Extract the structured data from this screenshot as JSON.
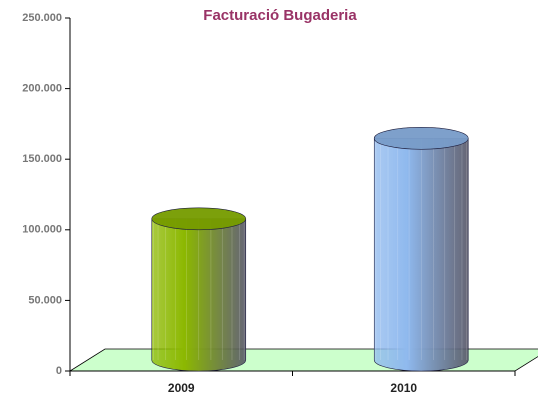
{
  "chart_data": {
    "type": "bar3d",
    "title": "Facturació Bugaderia",
    "categories": [
      "2009",
      "2010"
    ],
    "values": [
      100000,
      157000
    ],
    "colors": [
      "#8cb800",
      "#8fb9ee"
    ],
    "ylim": [
      0,
      250000
    ],
    "yticks": [
      0,
      {
        "value": 50000,
        "label": "50.000"
      },
      {
        "value": 100000,
        "label": "100.000"
      },
      {
        "value": 150000,
        "label": "150.000"
      },
      {
        "value": 200000,
        "label": "200.000"
      },
      {
        "value": 250000,
        "label": "250.000"
      }
    ],
    "floor_color": "#ccffcc"
  }
}
